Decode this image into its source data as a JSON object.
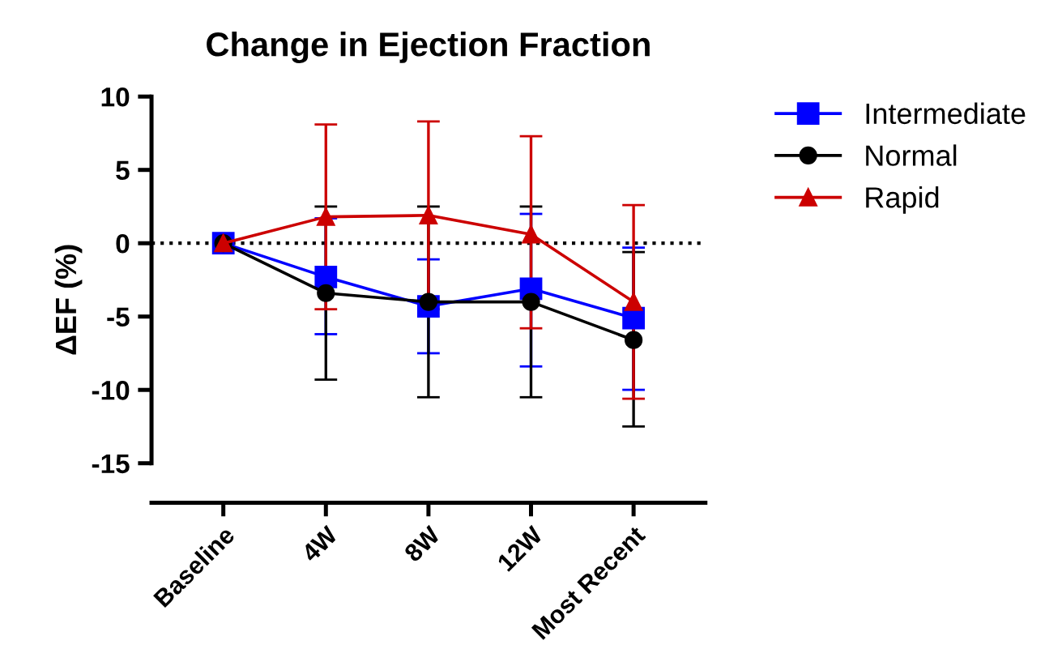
{
  "chart_data": {
    "type": "line",
    "title": "Change in Ejection Fraction",
    "ylabel": "ΔEF (%)",
    "categories": [
      "Baseline",
      "4W",
      "8W",
      "12W",
      "Most Recent"
    ],
    "series": [
      {
        "name": "Intermediate",
        "color": "#0000ff",
        "marker": "square",
        "values": [
          0,
          -2.3,
          -4.3,
          -3.1,
          -5.1
        ],
        "errors": [
          null,
          [
            -6.2,
            1.7
          ],
          [
            -7.5,
            -1.1
          ],
          [
            -8.4,
            2.0
          ],
          [
            -10.0,
            -0.3
          ]
        ]
      },
      {
        "name": "Normal",
        "color": "#000000",
        "marker": "circle",
        "values": [
          0,
          -3.4,
          -4.0,
          -4.0,
          -6.6
        ],
        "errors": [
          null,
          [
            -9.3,
            2.5
          ],
          [
            -10.5,
            2.5
          ],
          [
            -10.5,
            2.5
          ],
          [
            -12.5,
            -0.6
          ]
        ]
      },
      {
        "name": "Rapid",
        "color": "#cc0000",
        "marker": "triangle",
        "values": [
          0,
          1.8,
          1.9,
          0.6,
          -4.0
        ],
        "errors": [
          null,
          [
            -4.5,
            8.1
          ],
          [
            -4.5,
            8.3
          ],
          [
            -5.8,
            7.3
          ],
          [
            -10.6,
            2.6
          ]
        ]
      }
    ],
    "ylim": [
      -17.7,
      10
    ],
    "yticks": [
      -15,
      -10,
      -5,
      0,
      5,
      10
    ],
    "grid": false,
    "legend": "top right",
    "ref_lines": [
      {
        "axis": "y",
        "value": 0,
        "color": "#000000",
        "line_style": "dotted"
      }
    ]
  }
}
